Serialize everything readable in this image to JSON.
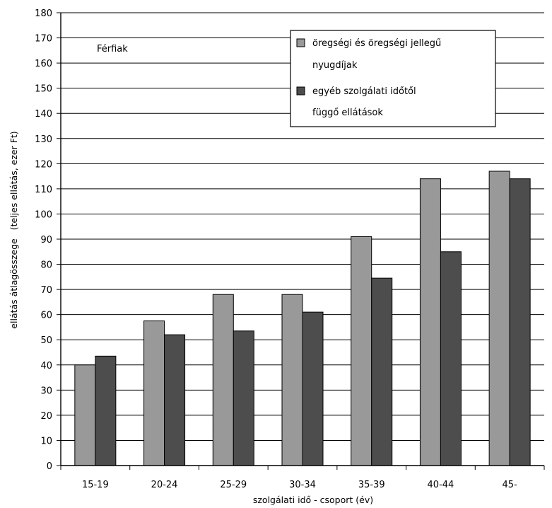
{
  "chart_data": {
    "type": "bar",
    "categories": [
      "15-19",
      "20-24",
      "25-29",
      "30-34",
      "35-39",
      "40-44",
      "45-"
    ],
    "series": [
      {
        "name": "öregségi és öregségi jellegű nyugdíjak",
        "name_lines": [
          "öregségi és öregségi jellegű",
          "nyugdíjak"
        ],
        "color": "#999999",
        "values": [
          40,
          57.5,
          68,
          68,
          91,
          114,
          117
        ]
      },
      {
        "name": "egyéb szolgálati időtől függő ellátások",
        "name_lines": [
          "egyéb szolgálati időtől",
          "függő ellátások"
        ],
        "color": "#4d4d4d",
        "values": [
          43.5,
          52,
          53.5,
          61,
          74.5,
          85,
          114
        ]
      }
    ],
    "annotation": "Férfiak",
    "xlabel": "szolgálati idő - csoport (év)",
    "ylabel": "ellátás átlagösszege   (teljes ellátás, ezer Ft)",
    "ylim": [
      0,
      180
    ],
    "ytick_step": 10,
    "grid": true,
    "legend_position": "top-right"
  }
}
